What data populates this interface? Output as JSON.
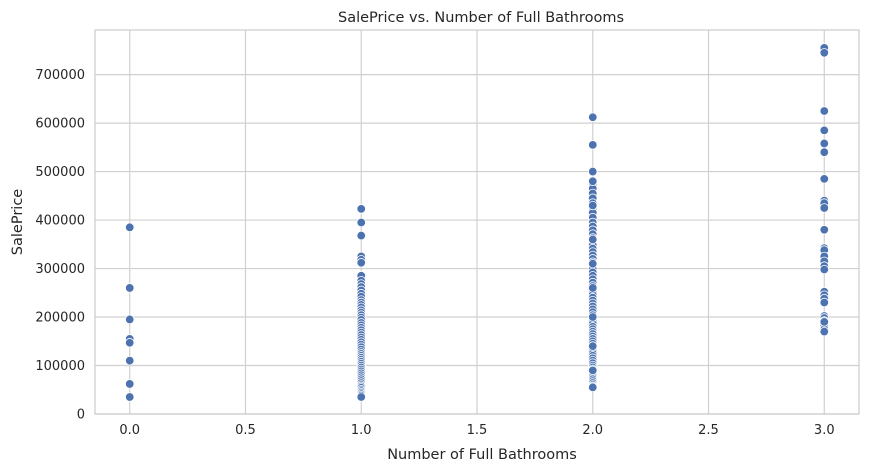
{
  "chart_data": {
    "type": "scatter",
    "title": "SalePrice vs. Number of Full Bathrooms",
    "xlabel": "Number of Full Bathrooms",
    "ylabel": "SalePrice",
    "xlim": [
      -0.15,
      3.15
    ],
    "ylim": [
      0,
      792000
    ],
    "xticks": [
      0.0,
      0.5,
      1.0,
      1.5,
      2.0,
      2.5,
      3.0
    ],
    "xtick_labels": [
      "0.0",
      "0.5",
      "1.0",
      "1.5",
      "2.0",
      "2.5",
      "3.0"
    ],
    "yticks": [
      0,
      100000,
      200000,
      300000,
      400000,
      500000,
      600000,
      700000
    ],
    "ytick_labels": [
      "0",
      "100000",
      "200000",
      "300000",
      "400000",
      "500000",
      "600000",
      "700000"
    ],
    "grid": true,
    "color": "#4c72b0",
    "series": [
      {
        "x": [
          0,
          0,
          0,
          0,
          0,
          0,
          0,
          0
        ],
        "y": [
          385000,
          260000,
          195000,
          155000,
          147000,
          110000,
          62000,
          35000
        ]
      },
      {
        "x": [
          1,
          1,
          1,
          1,
          1,
          1,
          1,
          1,
          1,
          1,
          1,
          1,
          1,
          1,
          1,
          1,
          1,
          1,
          1,
          1,
          1,
          1,
          1,
          1,
          1,
          1,
          1,
          1,
          1,
          1,
          1,
          1,
          1,
          1,
          1,
          1,
          1,
          1,
          1,
          1,
          1,
          1,
          1,
          1,
          1,
          1,
          1,
          1,
          1,
          1,
          1,
          1,
          1,
          1,
          1,
          1,
          1,
          1,
          1,
          1
        ],
        "y": [
          423000,
          395000,
          368000,
          325000,
          318000,
          312000,
          285000,
          275000,
          268000,
          262000,
          255000,
          248000,
          242000,
          235000,
          230000,
          225000,
          220000,
          214000,
          209000,
          204000,
          199000,
          194000,
          188000,
          183000,
          178000,
          173000,
          168000,
          163000,
          158000,
          153000,
          148000,
          143000,
          138000,
          133000,
          128000,
          124000,
          120000,
          116000,
          112000,
          108000,
          104000,
          100000,
          96000,
          92000,
          88000,
          84000,
          80000,
          76000,
          72000,
          68000,
          64000,
          60000,
          57000,
          54000,
          50000,
          47000,
          44000,
          41000,
          38000,
          35000
        ]
      },
      {
        "x": [
          2,
          2,
          2,
          2,
          2,
          2,
          2,
          2,
          2,
          2,
          2,
          2,
          2,
          2,
          2,
          2,
          2,
          2,
          2,
          2,
          2,
          2,
          2,
          2,
          2,
          2,
          2,
          2,
          2,
          2,
          2,
          2,
          2,
          2,
          2,
          2,
          2,
          2,
          2,
          2,
          2,
          2,
          2,
          2,
          2,
          2,
          2,
          2,
          2,
          2,
          2,
          2,
          2,
          2,
          2,
          2,
          2,
          2,
          2,
          2,
          2,
          2,
          2,
          2,
          2,
          2,
          2,
          2,
          2,
          2,
          2,
          2,
          2,
          2,
          2,
          2,
          2,
          2,
          2,
          2
        ],
        "y": [
          612000,
          555000,
          500000,
          475000,
          465000,
          455000,
          445000,
          435000,
          425000,
          415000,
          405000,
          395000,
          387000,
          379000,
          371000,
          363000,
          355000,
          348000,
          341000,
          334000,
          327000,
          320000,
          313000,
          306000,
          299000,
          292000,
          285000,
          278000,
          271000,
          264000,
          258000,
          252000,
          246000,
          240000,
          234000,
          228000,
          222000,
          216000,
          210000,
          204000,
          198000,
          192000,
          186000,
          180000,
          175000,
          170000,
          165000,
          160000,
          155000,
          150000,
          145000,
          140000,
          135000,
          130000,
          125000,
          120000,
          115000,
          110000,
          105000,
          100000,
          96000,
          92000,
          88000,
          84000,
          80000,
          76000,
          72000,
          68000,
          64000,
          60000,
          57000,
          55000,
          480000,
          430000,
          360000,
          310000,
          260000,
          200000,
          140000,
          90000
        ]
      },
      {
        "x": [
          3,
          3,
          3,
          3,
          3,
          3,
          3,
          3,
          3,
          3,
          3,
          3,
          3,
          3,
          3,
          3,
          3,
          3,
          3,
          3,
          3,
          3,
          3,
          3,
          3,
          3,
          3,
          3,
          3
        ],
        "y": [
          755000,
          745000,
          625000,
          585000,
          558000,
          540000,
          485000,
          440000,
          435000,
          425000,
          380000,
          342000,
          338000,
          325000,
          315000,
          305000,
          298000,
          252000,
          245000,
          238000,
          230000,
          202000,
          198000,
          192000,
          188000,
          182000,
          175000,
          170000,
          190000
        ]
      }
    ]
  }
}
